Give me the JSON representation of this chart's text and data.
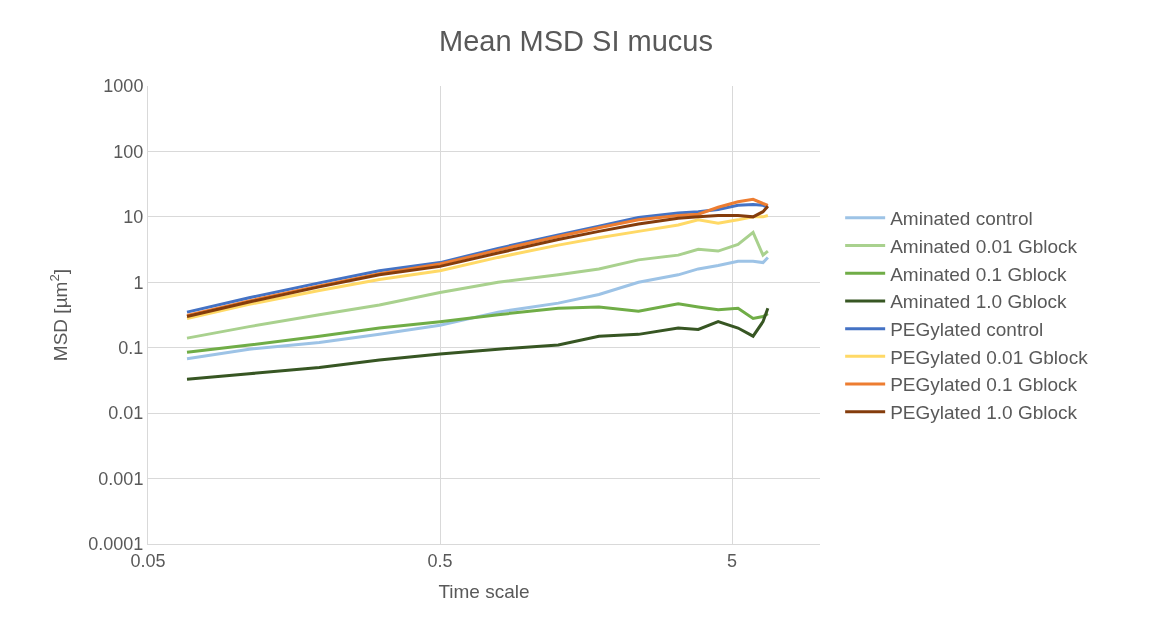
{
  "chart_data": {
    "type": "line",
    "title": "Mean MSD SI mucus",
    "xlabel": "Time scale",
    "ylabel": "MSD [µm$^{2}$]",
    "x": [
      0.068,
      0.111,
      0.193,
      0.31,
      0.5,
      0.79,
      1.27,
      1.75,
      2.39,
      3.27,
      3.83,
      4.48,
      5.24,
      5.9,
      6.38,
      6.63
    ],
    "series": [
      {
        "name": "Aminated control",
        "color": "#9dc3e6",
        "values": [
          0.068,
          0.095,
          0.12,
          0.16,
          0.22,
          0.35,
          0.48,
          0.65,
          1.0,
          1.3,
          1.6,
          1.8,
          2.1,
          2.1,
          2.0,
          2.4
        ]
      },
      {
        "name": "Aminated 0.01 Gblock",
        "color": "#a9d18e",
        "values": [
          0.14,
          0.21,
          0.32,
          0.45,
          0.7,
          1.0,
          1.3,
          1.6,
          2.2,
          2.6,
          3.2,
          3.0,
          3.8,
          5.8,
          2.6,
          3.0
        ]
      },
      {
        "name": "Aminated 0.1 Gblock",
        "color": "#70ad47",
        "values": [
          0.085,
          0.11,
          0.15,
          0.2,
          0.25,
          0.32,
          0.4,
          0.42,
          0.36,
          0.47,
          0.42,
          0.38,
          0.4,
          0.28,
          0.3,
          0.33
        ]
      },
      {
        "name": "Aminated 1.0 Gblock",
        "color": "#375623",
        "values": [
          0.033,
          0.04,
          0.05,
          0.065,
          0.08,
          0.095,
          0.11,
          0.15,
          0.16,
          0.2,
          0.19,
          0.25,
          0.2,
          0.15,
          0.25,
          0.4
        ]
      },
      {
        "name": "PEGylated control",
        "color": "#4472c4",
        "values": [
          0.35,
          0.58,
          0.98,
          1.5,
          2.0,
          3.3,
          5.3,
          7.2,
          9.8,
          11.5,
          12,
          13,
          15,
          15.5,
          15,
          14
        ]
      },
      {
        "name": "PEGylated 0.01 Gblock",
        "color": "#ffd966",
        "values": [
          0.28,
          0.46,
          0.75,
          1.1,
          1.5,
          2.4,
          3.7,
          4.8,
          6.0,
          7.5,
          9,
          8,
          9,
          10,
          10,
          10.5
        ]
      },
      {
        "name": "PEGylated 0.1 Gblock",
        "color": "#ed7d31",
        "values": [
          0.31,
          0.52,
          0.88,
          1.35,
          1.9,
          3.1,
          5.0,
          6.8,
          9.0,
          10.5,
          11,
          14,
          17,
          18.5,
          16,
          15
        ]
      },
      {
        "name": "PEGylated 1.0 Gblock",
        "color": "#843c0c",
        "values": [
          0.3,
          0.5,
          0.85,
          1.3,
          1.75,
          2.8,
          4.5,
          6.0,
          7.8,
          9.5,
          10,
          10.5,
          10.5,
          10,
          12,
          14.5
        ]
      }
    ],
    "log": "xy",
    "xlim": [
      0.05,
      10
    ],
    "xticks": [
      0.05,
      0.5,
      5
    ],
    "ylim": [
      0.0001,
      1000
    ],
    "yticks": [
      0.0001,
      0.001,
      0.01,
      0.1,
      1,
      10,
      100,
      1000
    ],
    "grid": true,
    "legend": "right",
    "marker": "none",
    "line_style": "solid"
  }
}
